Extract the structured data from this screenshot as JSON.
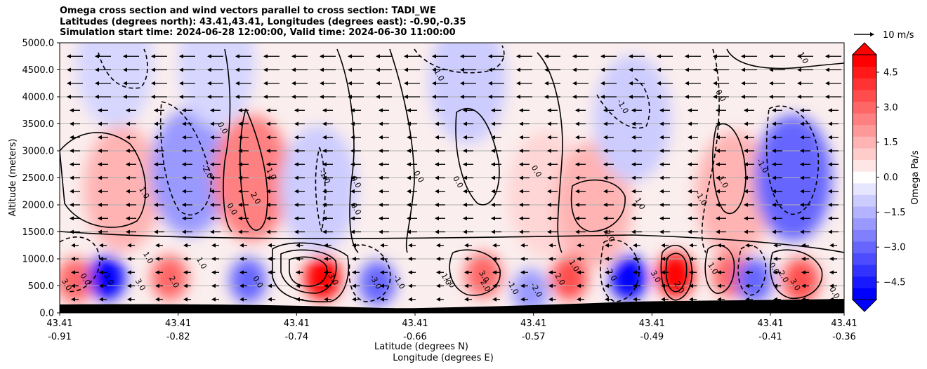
{
  "title_lines": [
    "Omega cross section and wind vectors parallel to cross section: TADI_WE",
    "Latitudes (degrees north): 43.41,43.41, Longitudes (degrees east): -0.90,-0.35",
    "Simulation start time: 2024-06-28 12:00:00, Valid time: 2024-06-30 11:00:00"
  ],
  "chart_data": {
    "type": "heatmap",
    "ylabel": "Altitude (meters)",
    "xlabel_lines": [
      "Latitude (degrees N)",
      "Longitude (degrees E)"
    ],
    "yticks": [
      "0.0",
      "500.0",
      "1000.0",
      "1500.0",
      "2000.0",
      "2500.0",
      "3000.0",
      "3500.0",
      "4000.0",
      "4500.0",
      "5000.0"
    ],
    "ylim": [
      0,
      5000
    ],
    "xticks": [
      {
        "lat": "43.41",
        "lon": "-0.91"
      },
      {
        "lat": "43.41",
        "lon": "-0.82"
      },
      {
        "lat": "43.41",
        "lon": "-0.74"
      },
      {
        "lat": "43.41",
        "lon": "-0.66"
      },
      {
        "lat": "43.41",
        "lon": "-0.57"
      },
      {
        "lat": "43.41",
        "lon": "-0.49"
      },
      {
        "lat": "43.41",
        "lon": "-0.41"
      },
      {
        "lat": "43.41",
        "lon": "-0.36"
      }
    ],
    "grid": "horizontal",
    "colorbar": {
      "label": "Omega Pa/s",
      "ticks": [
        "4.5",
        "3.0",
        "1.5",
        "0.0",
        "−1.5",
        "−3.0",
        "−4.5"
      ],
      "tick_values": [
        4.5,
        3.0,
        1.5,
        0.0,
        -1.5,
        -3.0,
        -4.5
      ],
      "range": [
        -5.25,
        5.25
      ],
      "extend": "both",
      "colormap": "bwr"
    },
    "quiver_key": "10 m/s",
    "wind_direction": "westward",
    "terrain_color": "#000000",
    "omega_cells": [
      {
        "x": 0.08,
        "alt": 2300,
        "v": 1.5
      },
      {
        "x": 0.165,
        "alt": 2600,
        "v": -2.0
      },
      {
        "x": 0.245,
        "alt": 2500,
        "v": 2.5
      },
      {
        "x": 0.33,
        "alt": 2300,
        "v": -1.0
      },
      {
        "x": 0.62,
        "alt": 2200,
        "v": 0.8
      },
      {
        "x": 0.68,
        "alt": 2000,
        "v": 1.5
      },
      {
        "x": 0.86,
        "alt": 2200,
        "v": 1.5
      },
      {
        "x": 0.935,
        "alt": 2500,
        "v": -3.0
      },
      {
        "x": 0.52,
        "alt": 4300,
        "v": -1.0
      },
      {
        "x": 0.73,
        "alt": 3600,
        "v": -1.0
      },
      {
        "x": 0.07,
        "alt": 4600,
        "v": -0.8
      },
      {
        "x": 0.2,
        "alt": 4600,
        "v": -0.8
      },
      {
        "x": 0.02,
        "alt": 600,
        "v": 3.0
      },
      {
        "x": 0.06,
        "alt": 650,
        "v": -5.0
      },
      {
        "x": 0.14,
        "alt": 650,
        "v": 3.0
      },
      {
        "x": 0.24,
        "alt": 600,
        "v": -3.0
      },
      {
        "x": 0.335,
        "alt": 650,
        "v": 5.0
      },
      {
        "x": 0.405,
        "alt": 550,
        "v": -3.0
      },
      {
        "x": 0.54,
        "alt": 700,
        "v": 3.0
      },
      {
        "x": 0.6,
        "alt": 400,
        "v": -2.0
      },
      {
        "x": 0.65,
        "alt": 650,
        "v": 3.5
      },
      {
        "x": 0.725,
        "alt": 650,
        "v": -5.0
      },
      {
        "x": 0.785,
        "alt": 700,
        "v": 5.0
      },
      {
        "x": 0.855,
        "alt": 700,
        "v": 3.0
      },
      {
        "x": 0.885,
        "alt": 600,
        "v": -3.0
      },
      {
        "x": 0.945,
        "alt": 600,
        "v": 3.5
      }
    ],
    "contour_labels": [
      {
        "text": "1.0",
        "x": 0.105,
        "alt": 2200
      },
      {
        "text": "-2.0",
        "x": 0.185,
        "alt": 2600
      },
      {
        "text": "0.0",
        "x": 0.205,
        "alt": 3400
      },
      {
        "text": "1.0",
        "x": 0.267,
        "alt": 2550
      },
      {
        "text": "2.0",
        "x": 0.247,
        "alt": 2100
      },
      {
        "text": "0.0",
        "x": 0.217,
        "alt": 1900
      },
      {
        "text": "-1.0",
        "x": 0.335,
        "alt": 2500
      },
      {
        "text": "0.0",
        "x": 0.375,
        "alt": 2400
      },
      {
        "text": "0.0",
        "x": 0.375,
        "alt": 1900
      },
      {
        "text": "0.0",
        "x": 0.455,
        "alt": 2500
      },
      {
        "text": "0.0",
        "x": 0.505,
        "alt": 2400
      },
      {
        "text": "0.0",
        "x": 0.605,
        "alt": 2600
      },
      {
        "text": "1.0",
        "x": 0.737,
        "alt": 2000
      },
      {
        "text": "2.0",
        "x": 0.698,
        "alt": 1400
      },
      {
        "text": "0.0",
        "x": 0.84,
        "alt": 4000
      },
      {
        "text": "-1.0",
        "x": 0.715,
        "alt": 3800
      },
      {
        "text": "-1.0",
        "x": 0.893,
        "alt": 2700
      },
      {
        "text": "1.0",
        "x": 0.843,
        "alt": 2400
      },
      {
        "text": "-1.0",
        "x": 0.815,
        "alt": 2100
      },
      {
        "text": "1.0",
        "x": 0.945,
        "alt": 4700
      },
      {
        "text": "-1.0",
        "x": 0.48,
        "alt": 4400
      },
      {
        "text": "3.0",
        "x": 0.006,
        "alt": 500
      },
      {
        "text": "0.0",
        "x": 0.03,
        "alt": 600
      },
      {
        "text": "3.0",
        "x": 0.1,
        "alt": 500
      },
      {
        "text": "2.0",
        "x": 0.143,
        "alt": 550
      },
      {
        "text": "1.0",
        "x": 0.178,
        "alt": 900
      },
      {
        "text": "3.0",
        "x": 0.06,
        "alt": 600
      },
      {
        "text": "1.0",
        "x": 0.11,
        "alt": 1000
      },
      {
        "text": "0.0",
        "x": 0.25,
        "alt": 550
      },
      {
        "text": "3.0",
        "x": 0.346,
        "alt": 600
      },
      {
        "text": "-1.0",
        "x": 0.43,
        "alt": 550
      },
      {
        "text": "-3.0",
        "x": 0.4,
        "alt": 550
      },
      {
        "text": "1.0",
        "x": 0.49,
        "alt": 600
      },
      {
        "text": "1.0",
        "x": 0.495,
        "alt": 550
      },
      {
        "text": "2.0",
        "x": 0.54,
        "alt": 480
      },
      {
        "text": "3.0",
        "x": 0.538,
        "alt": 650
      },
      {
        "text": "-1.0",
        "x": 0.575,
        "alt": 450
      },
      {
        "text": "-2.0",
        "x": 0.605,
        "alt": 400
      },
      {
        "text": "2.0",
        "x": 0.635,
        "alt": 600
      },
      {
        "text": "1.0",
        "x": 0.653,
        "alt": 850
      },
      {
        "text": "-2.0",
        "x": 0.7,
        "alt": 700
      },
      {
        "text": "3.0",
        "x": 0.757,
        "alt": 650
      },
      {
        "text": "2.0",
        "x": 0.787,
        "alt": 450
      },
      {
        "text": "1.0",
        "x": 0.83,
        "alt": 800
      },
      {
        "text": "0.0",
        "x": 0.908,
        "alt": 800
      },
      {
        "text": "2.0",
        "x": 0.92,
        "alt": 650
      },
      {
        "text": "3.0",
        "x": 0.935,
        "alt": 500
      },
      {
        "text": "0.0",
        "x": 0.985,
        "alt": 350
      }
    ]
  }
}
